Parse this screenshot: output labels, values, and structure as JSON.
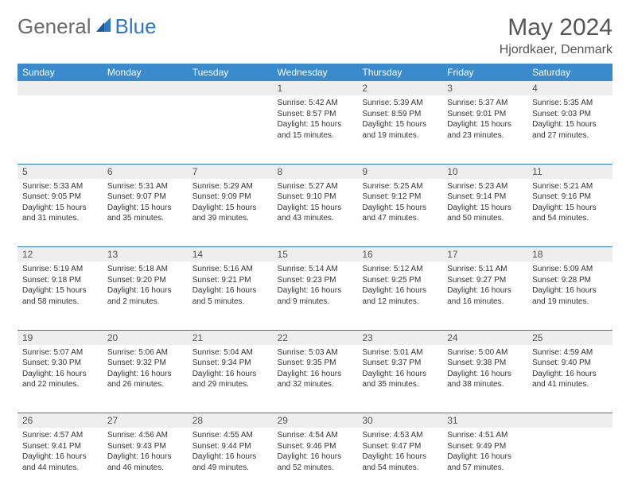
{
  "brand": {
    "part1": "General",
    "part2": "Blue"
  },
  "title": "May 2024",
  "location": "Hjordkaer, Denmark",
  "colors": {
    "header_bg": "#3a8bce",
    "header_text": "#ffffff",
    "daynum_bg": "#eeeeee",
    "border": "#2f78c4",
    "brand_gray": "#6a6a6a",
    "brand_blue": "#2f78c4"
  },
  "dayHeaders": [
    "Sunday",
    "Monday",
    "Tuesday",
    "Wednesday",
    "Thursday",
    "Friday",
    "Saturday"
  ],
  "weeks": [
    [
      {
        "n": "",
        "sunrise": "",
        "sunset": "",
        "daylight1": "",
        "daylight2": ""
      },
      {
        "n": "",
        "sunrise": "",
        "sunset": "",
        "daylight1": "",
        "daylight2": ""
      },
      {
        "n": "",
        "sunrise": "",
        "sunset": "",
        "daylight1": "",
        "daylight2": ""
      },
      {
        "n": "1",
        "sunrise": "Sunrise: 5:42 AM",
        "sunset": "Sunset: 8:57 PM",
        "daylight1": "Daylight: 15 hours",
        "daylight2": "and 15 minutes."
      },
      {
        "n": "2",
        "sunrise": "Sunrise: 5:39 AM",
        "sunset": "Sunset: 8:59 PM",
        "daylight1": "Daylight: 15 hours",
        "daylight2": "and 19 minutes."
      },
      {
        "n": "3",
        "sunrise": "Sunrise: 5:37 AM",
        "sunset": "Sunset: 9:01 PM",
        "daylight1": "Daylight: 15 hours",
        "daylight2": "and 23 minutes."
      },
      {
        "n": "4",
        "sunrise": "Sunrise: 5:35 AM",
        "sunset": "Sunset: 9:03 PM",
        "daylight1": "Daylight: 15 hours",
        "daylight2": "and 27 minutes."
      }
    ],
    [
      {
        "n": "5",
        "sunrise": "Sunrise: 5:33 AM",
        "sunset": "Sunset: 9:05 PM",
        "daylight1": "Daylight: 15 hours",
        "daylight2": "and 31 minutes."
      },
      {
        "n": "6",
        "sunrise": "Sunrise: 5:31 AM",
        "sunset": "Sunset: 9:07 PM",
        "daylight1": "Daylight: 15 hours",
        "daylight2": "and 35 minutes."
      },
      {
        "n": "7",
        "sunrise": "Sunrise: 5:29 AM",
        "sunset": "Sunset: 9:09 PM",
        "daylight1": "Daylight: 15 hours",
        "daylight2": "and 39 minutes."
      },
      {
        "n": "8",
        "sunrise": "Sunrise: 5:27 AM",
        "sunset": "Sunset: 9:10 PM",
        "daylight1": "Daylight: 15 hours",
        "daylight2": "and 43 minutes."
      },
      {
        "n": "9",
        "sunrise": "Sunrise: 5:25 AM",
        "sunset": "Sunset: 9:12 PM",
        "daylight1": "Daylight: 15 hours",
        "daylight2": "and 47 minutes."
      },
      {
        "n": "10",
        "sunrise": "Sunrise: 5:23 AM",
        "sunset": "Sunset: 9:14 PM",
        "daylight1": "Daylight: 15 hours",
        "daylight2": "and 50 minutes."
      },
      {
        "n": "11",
        "sunrise": "Sunrise: 5:21 AM",
        "sunset": "Sunset: 9:16 PM",
        "daylight1": "Daylight: 15 hours",
        "daylight2": "and 54 minutes."
      }
    ],
    [
      {
        "n": "12",
        "sunrise": "Sunrise: 5:19 AM",
        "sunset": "Sunset: 9:18 PM",
        "daylight1": "Daylight: 15 hours",
        "daylight2": "and 58 minutes."
      },
      {
        "n": "13",
        "sunrise": "Sunrise: 5:18 AM",
        "sunset": "Sunset: 9:20 PM",
        "daylight1": "Daylight: 16 hours",
        "daylight2": "and 2 minutes."
      },
      {
        "n": "14",
        "sunrise": "Sunrise: 5:16 AM",
        "sunset": "Sunset: 9:21 PM",
        "daylight1": "Daylight: 16 hours",
        "daylight2": "and 5 minutes."
      },
      {
        "n": "15",
        "sunrise": "Sunrise: 5:14 AM",
        "sunset": "Sunset: 9:23 PM",
        "daylight1": "Daylight: 16 hours",
        "daylight2": "and 9 minutes."
      },
      {
        "n": "16",
        "sunrise": "Sunrise: 5:12 AM",
        "sunset": "Sunset: 9:25 PM",
        "daylight1": "Daylight: 16 hours",
        "daylight2": "and 12 minutes."
      },
      {
        "n": "17",
        "sunrise": "Sunrise: 5:11 AM",
        "sunset": "Sunset: 9:27 PM",
        "daylight1": "Daylight: 16 hours",
        "daylight2": "and 16 minutes."
      },
      {
        "n": "18",
        "sunrise": "Sunrise: 5:09 AM",
        "sunset": "Sunset: 9:28 PM",
        "daylight1": "Daylight: 16 hours",
        "daylight2": "and 19 minutes."
      }
    ],
    [
      {
        "n": "19",
        "sunrise": "Sunrise: 5:07 AM",
        "sunset": "Sunset: 9:30 PM",
        "daylight1": "Daylight: 16 hours",
        "daylight2": "and 22 minutes."
      },
      {
        "n": "20",
        "sunrise": "Sunrise: 5:06 AM",
        "sunset": "Sunset: 9:32 PM",
        "daylight1": "Daylight: 16 hours",
        "daylight2": "and 26 minutes."
      },
      {
        "n": "21",
        "sunrise": "Sunrise: 5:04 AM",
        "sunset": "Sunset: 9:34 PM",
        "daylight1": "Daylight: 16 hours",
        "daylight2": "and 29 minutes."
      },
      {
        "n": "22",
        "sunrise": "Sunrise: 5:03 AM",
        "sunset": "Sunset: 9:35 PM",
        "daylight1": "Daylight: 16 hours",
        "daylight2": "and 32 minutes."
      },
      {
        "n": "23",
        "sunrise": "Sunrise: 5:01 AM",
        "sunset": "Sunset: 9:37 PM",
        "daylight1": "Daylight: 16 hours",
        "daylight2": "and 35 minutes."
      },
      {
        "n": "24",
        "sunrise": "Sunrise: 5:00 AM",
        "sunset": "Sunset: 9:38 PM",
        "daylight1": "Daylight: 16 hours",
        "daylight2": "and 38 minutes."
      },
      {
        "n": "25",
        "sunrise": "Sunrise: 4:59 AM",
        "sunset": "Sunset: 9:40 PM",
        "daylight1": "Daylight: 16 hours",
        "daylight2": "and 41 minutes."
      }
    ],
    [
      {
        "n": "26",
        "sunrise": "Sunrise: 4:57 AM",
        "sunset": "Sunset: 9:41 PM",
        "daylight1": "Daylight: 16 hours",
        "daylight2": "and 44 minutes."
      },
      {
        "n": "27",
        "sunrise": "Sunrise: 4:56 AM",
        "sunset": "Sunset: 9:43 PM",
        "daylight1": "Daylight: 16 hours",
        "daylight2": "and 46 minutes."
      },
      {
        "n": "28",
        "sunrise": "Sunrise: 4:55 AM",
        "sunset": "Sunset: 9:44 PM",
        "daylight1": "Daylight: 16 hours",
        "daylight2": "and 49 minutes."
      },
      {
        "n": "29",
        "sunrise": "Sunrise: 4:54 AM",
        "sunset": "Sunset: 9:46 PM",
        "daylight1": "Daylight: 16 hours",
        "daylight2": "and 52 minutes."
      },
      {
        "n": "30",
        "sunrise": "Sunrise: 4:53 AM",
        "sunset": "Sunset: 9:47 PM",
        "daylight1": "Daylight: 16 hours",
        "daylight2": "and 54 minutes."
      },
      {
        "n": "31",
        "sunrise": "Sunrise: 4:51 AM",
        "sunset": "Sunset: 9:49 PM",
        "daylight1": "Daylight: 16 hours",
        "daylight2": "and 57 minutes."
      },
      {
        "n": "",
        "sunrise": "",
        "sunset": "",
        "daylight1": "",
        "daylight2": ""
      }
    ]
  ]
}
